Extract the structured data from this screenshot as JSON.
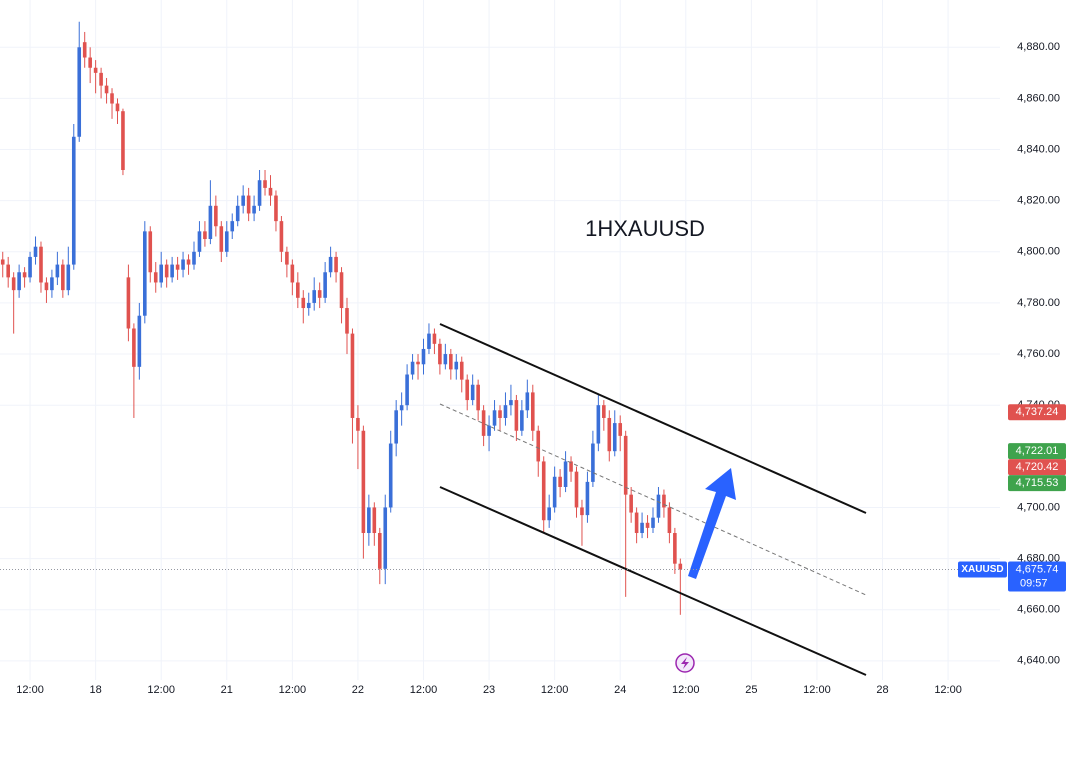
{
  "chart_data": {
    "type": "candlestick",
    "title": "1HXAUUSD",
    "up_color": "#3a6fd8",
    "down_color": "#e0524f",
    "grid": true,
    "ylim": [
      4632.5,
      4898.5
    ],
    "yticks": [
      {
        "value": 4640,
        "label": "4,640.00"
      },
      {
        "value": 4660,
        "label": "4,660.00"
      },
      {
        "value": 4680,
        "label": "4,680.00"
      },
      {
        "value": 4700,
        "label": "4,700.00"
      },
      {
        "value": 4740,
        "label": "4,740.00"
      },
      {
        "value": 4760,
        "label": "4,760.00"
      },
      {
        "value": 4780,
        "label": "4,780.00"
      },
      {
        "value": 4800,
        "label": "4,800.00"
      },
      {
        "value": 4820,
        "label": "4,820.00"
      },
      {
        "value": 4840,
        "label": "4,840.00"
      },
      {
        "value": 4860,
        "label": "4,860.00"
      },
      {
        "value": 4880,
        "label": "4,880.00"
      }
    ],
    "categories": [
      null,
      null,
      null,
      null,
      null,
      "12:00",
      null,
      null,
      null,
      null,
      null,
      null,
      null,
      null,
      null,
      null,
      null,
      "18",
      null,
      null,
      null,
      null,
      null,
      null,
      null,
      null,
      null,
      null,
      null,
      "12:00",
      null,
      null,
      null,
      null,
      null,
      null,
      null,
      null,
      null,
      null,
      null,
      "21",
      null,
      null,
      null,
      null,
      null,
      null,
      null,
      null,
      null,
      null,
      null,
      "12:00",
      null,
      null,
      null,
      null,
      null,
      null,
      null,
      null,
      null,
      null,
      null,
      "22",
      null,
      null,
      null,
      null,
      null,
      null,
      null,
      null,
      null,
      null,
      null,
      "12:00",
      null,
      null,
      null,
      null,
      null,
      null,
      null,
      null,
      null,
      null,
      null,
      "23",
      null,
      null,
      null,
      null,
      null,
      null,
      null,
      null,
      null,
      null,
      null,
      "12:00",
      null,
      null,
      null,
      null,
      null,
      null,
      null,
      null,
      null,
      null,
      null,
      "24",
      null,
      null,
      null,
      null,
      null,
      null,
      null,
      null,
      null,
      null,
      null,
      "12:00",
      null,
      null,
      null,
      null,
      null,
      null,
      null,
      null,
      null,
      null,
      null,
      "25",
      null,
      null,
      null,
      null,
      null,
      null,
      null,
      null,
      null,
      null,
      null,
      "12:00",
      null,
      null,
      null,
      null,
      null,
      null,
      null,
      null,
      null,
      null,
      null,
      "28",
      null,
      null,
      null,
      null,
      null,
      null,
      null,
      null,
      null,
      null,
      null,
      "12:00",
      null,
      null,
      null,
      null,
      null,
      null,
      null,
      null,
      null
    ],
    "ohlc": [
      [
        4797,
        4800,
        4790,
        4795
      ],
      [
        4795,
        4798,
        4786,
        4790
      ],
      [
        4790,
        4792,
        4768,
        4785
      ],
      [
        4785,
        4795,
        4782,
        4792
      ],
      [
        4792,
        4794,
        4786,
        4790
      ],
      [
        4790,
        4800,
        4788,
        4798
      ],
      [
        4798,
        4806,
        4795,
        4802
      ],
      [
        4802,
        4804,
        4784,
        4788
      ],
      [
        4788,
        4790,
        4780,
        4785
      ],
      [
        4785,
        4793,
        4782,
        4790
      ],
      [
        4790,
        4800,
        4787,
        4795
      ],
      [
        4795,
        4797,
        4782,
        4785
      ],
      [
        4785,
        4802,
        4783,
        4795
      ],
      [
        4795,
        4850,
        4793,
        4845
      ],
      [
        4845,
        4890,
        4843,
        4880
      ],
      [
        4882,
        4886,
        4872,
        4876
      ],
      [
        4876,
        4880,
        4866,
        4872
      ],
      [
        4872,
        4875,
        4862,
        4870
      ],
      [
        4870,
        4872,
        4860,
        4865
      ],
      [
        4865,
        4868,
        4858,
        4862
      ],
      [
        4862,
        4864,
        4852,
        4858
      ],
      [
        4858,
        4860,
        4850,
        4855
      ],
      [
        4855,
        4856,
        4830,
        4832
      ],
      [
        4790,
        4795,
        4765,
        4770
      ],
      [
        4770,
        4772,
        4735,
        4755
      ],
      [
        4755,
        4780,
        4750,
        4775
      ],
      [
        4775,
        4812,
        4772,
        4808
      ],
      [
        4808,
        4810,
        4788,
        4792
      ],
      [
        4792,
        4796,
        4784,
        4788
      ],
      [
        4788,
        4800,
        4786,
        4795
      ],
      [
        4795,
        4797,
        4786,
        4790
      ],
      [
        4790,
        4798,
        4788,
        4795
      ],
      [
        4795,
        4798,
        4789,
        4793
      ],
      [
        4793,
        4800,
        4790,
        4797
      ],
      [
        4797,
        4799,
        4791,
        4795
      ],
      [
        4795,
        4804,
        4793,
        4800
      ],
      [
        4800,
        4812,
        4798,
        4808
      ],
      [
        4808,
        4812,
        4802,
        4805
      ],
      [
        4805,
        4828,
        4803,
        4818
      ],
      [
        4818,
        4822,
        4806,
        4810
      ],
      [
        4810,
        4812,
        4796,
        4800
      ],
      [
        4800,
        4812,
        4798,
        4808
      ],
      [
        4808,
        4815,
        4805,
        4812
      ],
      [
        4812,
        4822,
        4810,
        4818
      ],
      [
        4818,
        4826,
        4815,
        4822
      ],
      [
        4822,
        4825,
        4812,
        4815
      ],
      [
        4815,
        4822,
        4812,
        4818
      ],
      [
        4818,
        4832,
        4816,
        4828
      ],
      [
        4828,
        4832,
        4822,
        4825
      ],
      [
        4825,
        4830,
        4818,
        4822
      ],
      [
        4822,
        4824,
        4808,
        4812
      ],
      [
        4812,
        4814,
        4796,
        4800
      ],
      [
        4800,
        4802,
        4790,
        4795
      ],
      [
        4795,
        4797,
        4783,
        4788
      ],
      [
        4788,
        4792,
        4778,
        4782
      ],
      [
        4782,
        4785,
        4772,
        4778
      ],
      [
        4778,
        4784,
        4775,
        4780
      ],
      [
        4780,
        4790,
        4777,
        4785
      ],
      [
        4785,
        4788,
        4778,
        4782
      ],
      [
        4782,
        4796,
        4780,
        4792
      ],
      [
        4792,
        4802,
        4790,
        4798
      ],
      [
        4798,
        4800,
        4788,
        4792
      ],
      [
        4792,
        4794,
        4772,
        4778
      ],
      [
        4778,
        4782,
        4760,
        4768
      ],
      [
        4768,
        4770,
        4725,
        4735
      ],
      [
        4735,
        4740,
        4715,
        4730
      ],
      [
        4730,
        4732,
        4680,
        4690
      ],
      [
        4690,
        4705,
        4685,
        4700
      ],
      [
        4700,
        4702,
        4685,
        4690
      ],
      [
        4690,
        4692,
        4670,
        4676
      ],
      [
        4676,
        4705,
        4670,
        4700
      ],
      [
        4700,
        4730,
        4698,
        4725
      ],
      [
        4725,
        4742,
        4720,
        4738
      ],
      [
        4738,
        4745,
        4732,
        4740
      ],
      [
        4740,
        4756,
        4738,
        4752
      ],
      [
        4752,
        4760,
        4750,
        4757
      ],
      [
        4757,
        4760,
        4750,
        4756
      ],
      [
        4756,
        4766,
        4752,
        4762
      ],
      [
        4762,
        4772,
        4760,
        4768
      ],
      [
        4768,
        4770,
        4760,
        4764
      ],
      [
        4764,
        4766,
        4752,
        4756
      ],
      [
        4756,
        4764,
        4754,
        4760
      ],
      [
        4760,
        4762,
        4750,
        4754
      ],
      [
        4754,
        4760,
        4750,
        4757
      ],
      [
        4757,
        4759,
        4745,
        4750
      ],
      [
        4750,
        4752,
        4738,
        4742
      ],
      [
        4742,
        4752,
        4740,
        4748
      ],
      [
        4748,
        4750,
        4734,
        4738
      ],
      [
        4738,
        4740,
        4724,
        4728
      ],
      [
        4728,
        4736,
        4722,
        4732
      ],
      [
        4732,
        4742,
        4730,
        4738
      ],
      [
        4738,
        4740,
        4730,
        4735
      ],
      [
        4735,
        4745,
        4732,
        4740
      ],
      [
        4740,
        4748,
        4736,
        4742
      ],
      [
        4742,
        4744,
        4726,
        4730
      ],
      [
        4730,
        4742,
        4728,
        4738
      ],
      [
        4738,
        4750,
        4735,
        4745
      ],
      [
        4745,
        4748,
        4726,
        4730
      ],
      [
        4730,
        4732,
        4712,
        4718
      ],
      [
        4718,
        4720,
        4690,
        4695
      ],
      [
        4695,
        4705,
        4692,
        4700
      ],
      [
        4700,
        4716,
        4698,
        4712
      ],
      [
        4712,
        4715,
        4704,
        4708
      ],
      [
        4708,
        4722,
        4706,
        4718
      ],
      [
        4718,
        4720,
        4710,
        4714
      ],
      [
        4714,
        4716,
        4696,
        4700
      ],
      [
        4700,
        4703,
        4685,
        4697
      ],
      [
        4697,
        4714,
        4694,
        4710
      ],
      [
        4710,
        4730,
        4708,
        4725
      ],
      [
        4725,
        4744,
        4722,
        4740
      ],
      [
        4740,
        4742,
        4730,
        4735
      ],
      [
        4735,
        4738,
        4718,
        4722
      ],
      [
        4722,
        4738,
        4720,
        4733
      ],
      [
        4733,
        4736,
        4722,
        4728
      ],
      [
        4728,
        4730,
        4665,
        4705
      ],
      [
        4705,
        4708,
        4694,
        4698
      ],
      [
        4698,
        4700,
        4686,
        4690
      ],
      [
        4690,
        4698,
        4688,
        4694
      ],
      [
        4694,
        4697,
        4688,
        4692
      ],
      [
        4692,
        4700,
        4690,
        4696
      ],
      [
        4696,
        4708,
        4694,
        4705
      ],
      [
        4705,
        4707,
        4696,
        4700
      ],
      [
        4700,
        4702,
        4686,
        4690
      ],
      [
        4690,
        4692,
        4674,
        4678
      ],
      [
        4678,
        4680,
        4658,
        4675.74
      ],
      null,
      null,
      null,
      null,
      null,
      null,
      null,
      null,
      null,
      null,
      null,
      null,
      null,
      null,
      null,
      null,
      null,
      null,
      null,
      null,
      null,
      null,
      null,
      null,
      null,
      null,
      null,
      null,
      null,
      null,
      null,
      null,
      null,
      null,
      null,
      null,
      null,
      null,
      null,
      null,
      null,
      null,
      null,
      null,
      null,
      null,
      null,
      null,
      null,
      null,
      null,
      null,
      null,
      null,
      null,
      null,
      null,
      null
    ],
    "price_tags": [
      {
        "value": 4737.24,
        "label": "4,737.24",
        "color": "#e0524f"
      },
      {
        "value": 4722.01,
        "label": "4,722.01",
        "color": "#3fa34d"
      },
      {
        "value": 4720.42,
        "label": "4,720.42",
        "color": "#e0524f"
      },
      {
        "value": 4715.53,
        "label": "4,715.53",
        "color": "#3fa34d"
      }
    ],
    "last_price": {
      "symbol": "XAUUSD",
      "value": 4675.74,
      "label": "4,675.74",
      "countdown": "09:57",
      "color": "#2962ff"
    }
  }
}
